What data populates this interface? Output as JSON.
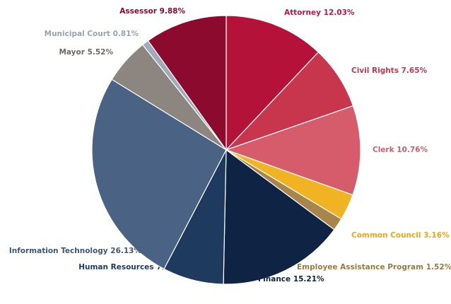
{
  "chart_data": {
    "type": "pie",
    "categories": [
      "Attorney",
      "Civil Rights",
      "Clerk",
      "Common Council",
      "Employee Assistance Program",
      "Finance",
      "Human Resources",
      "Information Technology",
      "Mayor",
      "Municipal Court",
      "Assessor"
    ],
    "values": [
      12.03,
      7.65,
      10.76,
      3.16,
      1.52,
      15.21,
      7.32,
      26.13,
      5.52,
      0.81,
      9.88
    ],
    "value_labels": [
      "12.03%",
      "7.65%",
      "10.76%",
      "3.16%",
      "1.52%",
      "15.21%",
      "7.3-2%",
      "26.13%",
      "5.52%",
      "0.81%",
      "9.88%"
    ],
    "colors": [
      "#b5123a",
      "#c8364d",
      "#d65c6b",
      "#f0b323",
      "#a8854a",
      "#0f2444",
      "#1f3a5f",
      "#4a6385",
      "#8c8580",
      "#9fabb6",
      "#8b0a2e"
    ],
    "label_colors": [
      "#c0183f",
      "#c8364d",
      "#d65c6b",
      "#e8a81a",
      "#9a7a40",
      "#0f2444",
      "#1f3a5f",
      "#3f5676",
      "#6f6a66",
      "#98a4b0",
      "#8b0a2e"
    ]
  }
}
